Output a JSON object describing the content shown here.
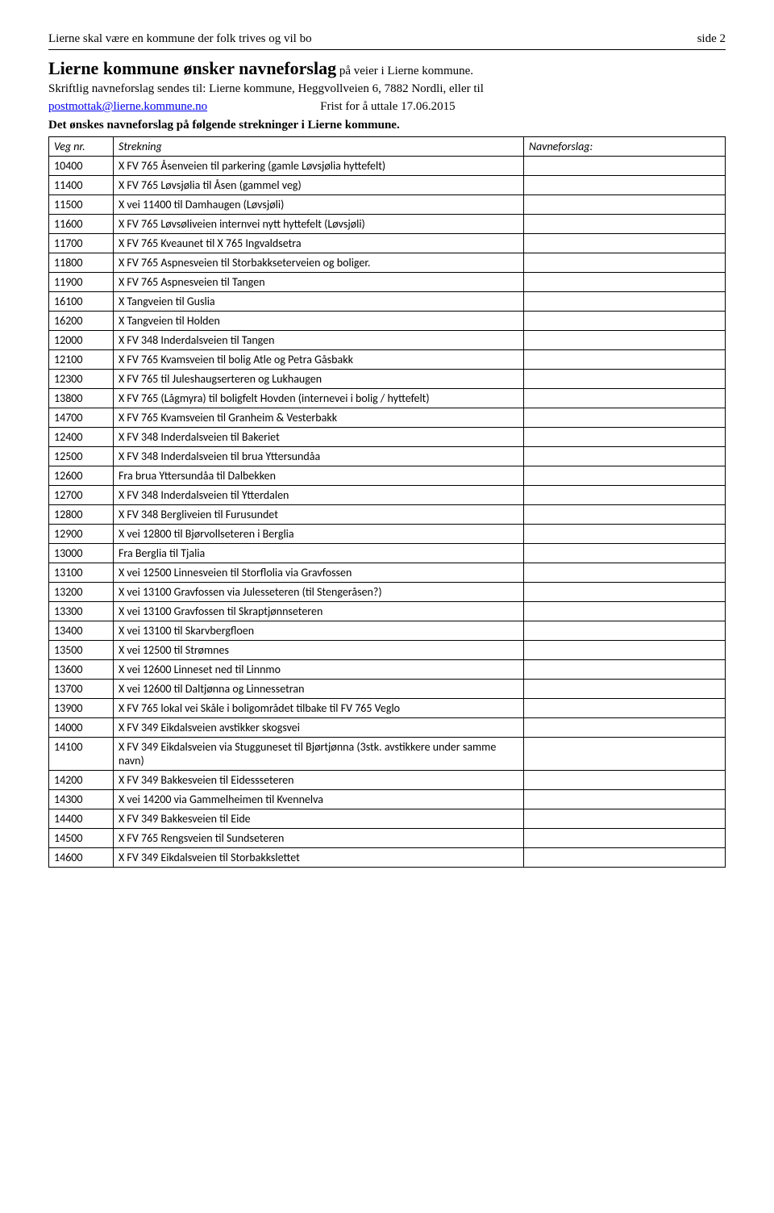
{
  "header": {
    "left": "Lierne skal være en kommune der folk trives og vil bo",
    "right": "side 2"
  },
  "title": {
    "big": "Lierne kommune ønsker navneforslag",
    "small": " på veier i Lierne kommune."
  },
  "intro_line1": "Skriftlig navneforslag sendes til: Lierne kommune, Heggvollveien 6, 7882 Nordli, eller til",
  "intro_email": "postmottak@lierne.kommune.no",
  "intro_frist": "Frist for å uttale 17.06.2015",
  "intro_line3": "Det ønskes navneforslag på følgende strekninger i Lierne kommune.",
  "table": {
    "headers": {
      "c1": "Veg nr.",
      "c2": "Strekning",
      "c3": "Navneforslag:"
    },
    "rows": [
      {
        "nr": "10400",
        "str": "X FV 765 Åsenveien til parkering  (gamle Løvsjølia hyttefelt)"
      },
      {
        "nr": "11400",
        "str": "X FV 765 Løvsjølia til Åsen (gammel veg)"
      },
      {
        "nr": "11500",
        "str": "X vei 11400 til Damhaugen (Løvsjøli)"
      },
      {
        "nr": "11600",
        "str": "X FV 765 Løvsøliveien internvei nytt hyttefelt (Løvsjøli)"
      },
      {
        "nr": "11700",
        "str": "X FV 765 Kveaunet til X 765 Ingvaldsetra"
      },
      {
        "nr": "11800",
        "str": "X FV 765 Aspnesveien til Storbakkseterveien og boliger."
      },
      {
        "nr": "11900",
        "str": "X FV 765 Aspnesveien til Tangen"
      },
      {
        "nr": "16100",
        "str": "X Tangveien til Guslia"
      },
      {
        "nr": "16200",
        "str": "X Tangveien til Holden"
      },
      {
        "nr": "12000",
        "str": "X FV 348 Inderdalsveien til Tangen"
      },
      {
        "nr": "12100",
        "str": "X FV 765 Kvamsveien til bolig Atle og Petra Gåsbakk"
      },
      {
        "nr": "12300",
        "str": "X FV 765 til Juleshaugserteren og Lukhaugen"
      },
      {
        "nr": "13800",
        "str": "X FV 765 (Lågmyra) til boligfelt Hovden (internevei i bolig / hyttefelt)"
      },
      {
        "nr": "14700",
        "str": "X FV 765 Kvamsveien til Granheim & Vesterbakk"
      },
      {
        "nr": "12400",
        "str": "X FV 348 Inderdalsveien til Bakeriet"
      },
      {
        "nr": "12500",
        "str": "X FV 348 Inderdalsveien til brua Yttersundåa"
      },
      {
        "nr": "12600",
        "str": "Fra brua Yttersundåa til Dalbekken"
      },
      {
        "nr": "12700",
        "str": "X FV 348 Inderdalsveien til Ytterdalen"
      },
      {
        "nr": "12800",
        "str": "X FV 348 Bergliveien til Furusundet"
      },
      {
        "nr": "12900",
        "str": "X vei 12800 til Bjørvollseteren i Berglia"
      },
      {
        "nr": "13000",
        "str": "Fra Berglia til Tjalia"
      },
      {
        "nr": "13100",
        "str": "X vei 12500 Linnesveien til Storflolia via Gravfossen"
      },
      {
        "nr": "13200",
        "str": "X vei 13100 Gravfossen via Julesseteren (til Stengeråsen?)"
      },
      {
        "nr": "13300",
        "str": "X vei 13100 Gravfossen til Skraptjønnseteren"
      },
      {
        "nr": "13400",
        "str": "X vei 13100 til Skarvbergfloen"
      },
      {
        "nr": "13500",
        "str": "X vei 12500 til Strømnes"
      },
      {
        "nr": "13600",
        "str": "X  vei 12600 Linneset ned til Linnmo"
      },
      {
        "nr": "13700",
        "str": "X vei 12600 til Daltjønna og Linnessetran"
      },
      {
        "nr": "13900",
        "str": "X FV 765 lokal vei Skåle i boligområdet tilbake til FV 765 Veglo"
      },
      {
        "nr": "14000",
        "str": "X FV 349 Eikdalsveien avstikker skogsvei"
      },
      {
        "nr": "14100",
        "str": "X FV 349 Eikdalsveien via Stugguneset til Bjørtjønna (3stk. avstikkere under samme navn)"
      },
      {
        "nr": "14200",
        "str": "X FV 349 Bakkesveien til Eidessseteren"
      },
      {
        "nr": "14300",
        "str": "X vei 14200 via Gammelheimen til Kvennelva"
      },
      {
        "nr": "14400",
        "str": "X FV 349 Bakkesveien til Eide"
      },
      {
        "nr": "14500",
        "str": "X FV 765 Rengsveien til Sundseteren"
      },
      {
        "nr": "14600",
        "str": "X FV 349 Eikdalsveien til Storbakkslettet"
      }
    ]
  }
}
